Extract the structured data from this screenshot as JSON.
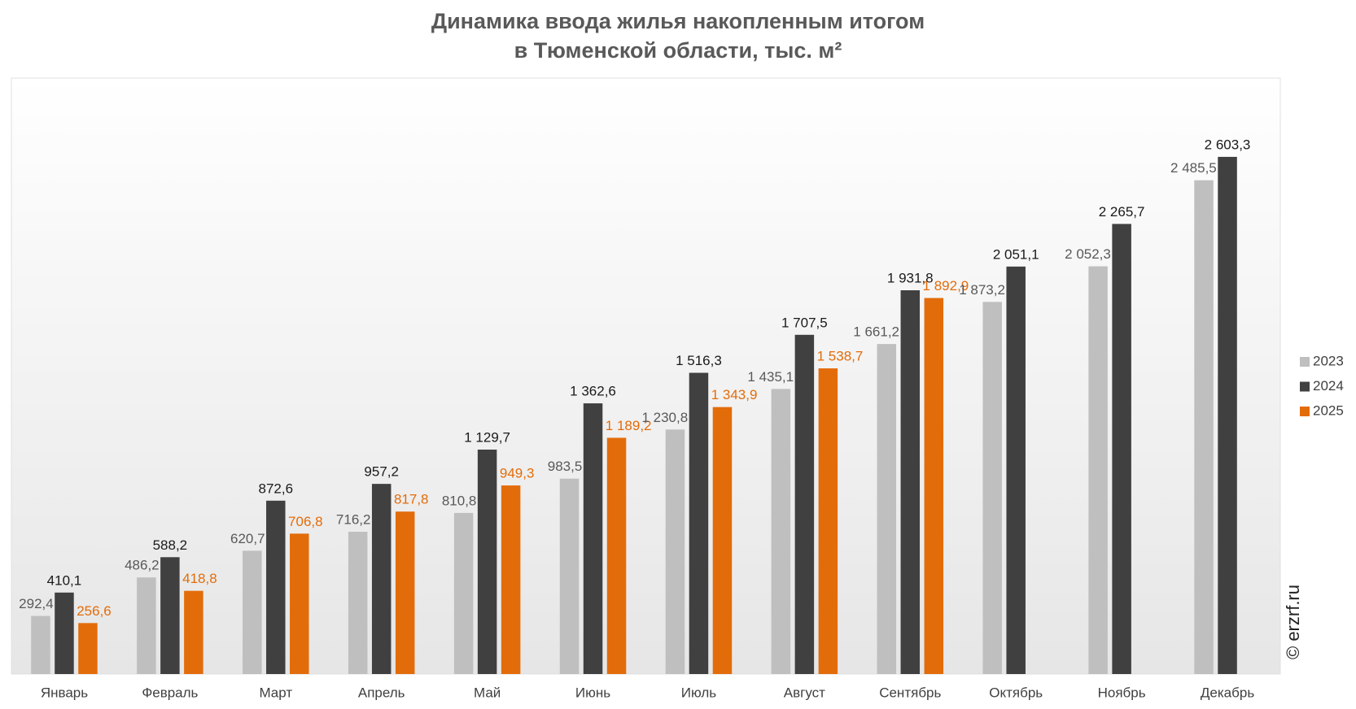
{
  "chart_data": {
    "type": "bar",
    "title": "Динамика ввода жилья накопленным итогом",
    "subtitle": "в Тюменской области, тыс. м²",
    "watermark": "© erzrf.ru",
    "categories": [
      "Январь",
      "Февраль",
      "Март",
      "Апрель",
      "Май",
      "Июнь",
      "Июль",
      "Август",
      "Сентябрь",
      "Октябрь",
      "Ноябрь",
      "Декабрь"
    ],
    "series": [
      {
        "name": "2023",
        "color": "#bfbfbf",
        "label_color": "#595959",
        "values": [
          292.4,
          486.2,
          620.7,
          716.2,
          810.8,
          983.5,
          1230.8,
          1435.1,
          1661.2,
          1873.2,
          2052.3,
          2485.5
        ],
        "value_labels": [
          "292,4",
          "486,2",
          "620,7",
          "716,2",
          "810,8",
          "983,5",
          "1 230,8",
          "1 435,1",
          "1 661,2",
          "1 873,2",
          "2 052,3",
          "2 485,5"
        ]
      },
      {
        "name": "2024",
        "color": "#404040",
        "label_color": "#1a1a1a",
        "values": [
          410.1,
          588.2,
          872.6,
          957.2,
          1129.7,
          1362.6,
          1516.3,
          1707.5,
          1931.8,
          2051.1,
          2265.7,
          2603.3
        ],
        "value_labels": [
          "410,1",
          "588,2",
          "872,6",
          "957,2",
          "1 129,7",
          "1 362,6",
          "1 516,3",
          "1 707,5",
          "1 931,8",
          "2 051,1",
          "2 265,7",
          "2 603,3"
        ]
      },
      {
        "name": "2025",
        "color": "#e36c0a",
        "label_color": "#e36c0a",
        "values": [
          256.6,
          418.8,
          706.8,
          817.8,
          949.3,
          1189.2,
          1343.9,
          1538.7,
          1892.9,
          null,
          null,
          null
        ],
        "value_labels": [
          "256,6",
          "418,8",
          "706,8",
          "817,8",
          "949,3",
          "1 189,2",
          "1 343,9",
          "1 538,7",
          "1 892,9",
          null,
          null,
          null
        ]
      }
    ],
    "ylim": [
      0,
      3000
    ],
    "legend": "right"
  }
}
